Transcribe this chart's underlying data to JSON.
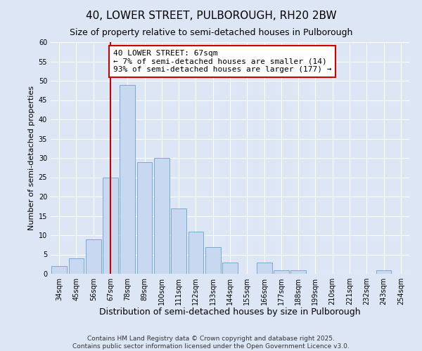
{
  "title": "40, LOWER STREET, PULBOROUGH, RH20 2BW",
  "subtitle": "Size of property relative to semi-detached houses in Pulborough",
  "xlabel": "Distribution of semi-detached houses by size in Pulborough",
  "ylabel": "Number of semi-detached properties",
  "categories": [
    "34sqm",
    "45sqm",
    "56sqm",
    "67sqm",
    "78sqm",
    "89sqm",
    "100sqm",
    "111sqm",
    "122sqm",
    "133sqm",
    "144sqm",
    "155sqm",
    "166sqm",
    "177sqm",
    "188sqm",
    "199sqm",
    "210sqm",
    "221sqm",
    "232sqm",
    "243sqm",
    "254sqm"
  ],
  "values": [
    2,
    4,
    9,
    25,
    49,
    29,
    30,
    17,
    11,
    7,
    3,
    0,
    3,
    1,
    1,
    0,
    0,
    0,
    0,
    1,
    0
  ],
  "bar_color": "#c8d8f0",
  "bar_edge_color": "#7aaad0",
  "vline_x_index": 3,
  "vline_color": "#cc0000",
  "annotation_title": "40 LOWER STREET: 67sqm",
  "annotation_line1": "← 7% of semi-detached houses are smaller (14)",
  "annotation_line2": "93% of semi-detached houses are larger (177) →",
  "annotation_box_color": "#ffffff",
  "annotation_border_color": "#cc0000",
  "ylim": [
    0,
    60
  ],
  "yticks": [
    0,
    5,
    10,
    15,
    20,
    25,
    30,
    35,
    40,
    45,
    50,
    55,
    60
  ],
  "bg_color": "#dce6f5",
  "plot_bg_color": "#dce6f5",
  "footer_line1": "Contains HM Land Registry data © Crown copyright and database right 2025.",
  "footer_line2": "Contains public sector information licensed under the Open Government Licence v3.0.",
  "title_fontsize": 11,
  "subtitle_fontsize": 9,
  "xlabel_fontsize": 9,
  "ylabel_fontsize": 8,
  "tick_fontsize": 7,
  "annotation_fontsize": 8,
  "footer_fontsize": 6.5
}
